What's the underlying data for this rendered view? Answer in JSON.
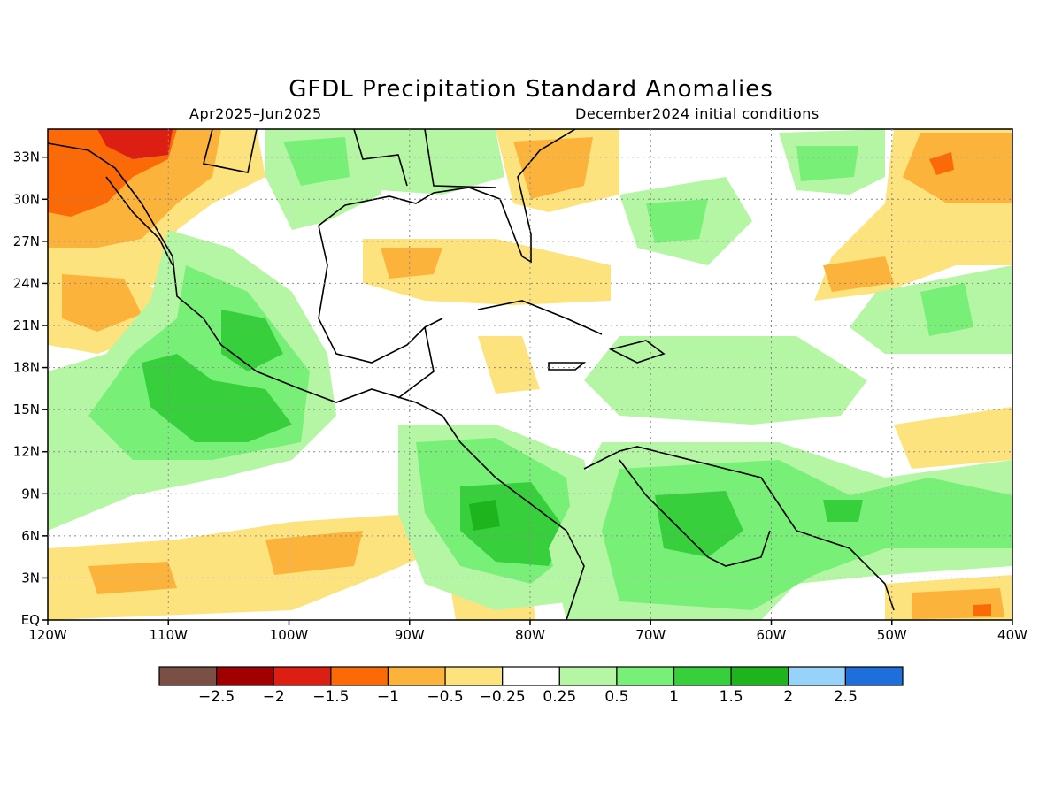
{
  "title": "GFDL Precipitation Standard Anomalies",
  "subtitle_left": "Apr2025–Jun2025",
  "subtitle_right": "December2024 initial conditions",
  "map": {
    "lon_range": [
      -120,
      -40
    ],
    "lat_range": [
      0,
      35
    ],
    "x_ticks": [
      {
        "lon": -120,
        "label": "120W"
      },
      {
        "lon": -110,
        "label": "110W"
      },
      {
        "lon": -100,
        "label": "100W"
      },
      {
        "lon": -90,
        "label": "90W"
      },
      {
        "lon": -80,
        "label": "80W"
      },
      {
        "lon": -70,
        "label": "70W"
      },
      {
        "lon": -60,
        "label": "60W"
      },
      {
        "lon": -50,
        "label": "50W"
      },
      {
        "lon": -40,
        "label": "40W"
      }
    ],
    "y_ticks": [
      {
        "lat": 0,
        "label": "EQ"
      },
      {
        "lat": 3,
        "label": "3N"
      },
      {
        "lat": 6,
        "label": "6N"
      },
      {
        "lat": 9,
        "label": "9N"
      },
      {
        "lat": 12,
        "label": "12N"
      },
      {
        "lat": 15,
        "label": "15N"
      },
      {
        "lat": 18,
        "label": "18N"
      },
      {
        "lat": 21,
        "label": "21N"
      },
      {
        "lat": 24,
        "label": "24N"
      },
      {
        "lat": 27,
        "label": "27N"
      },
      {
        "lat": 30,
        "label": "30N"
      },
      {
        "lat": 33,
        "label": "33N"
      }
    ],
    "grid": "dotted"
  },
  "colorbar": {
    "colors": [
      "#7a5046",
      "#a00000",
      "#dd1e12",
      "#fb6a07",
      "#fcb33c",
      "#fde37e",
      "#ffffff",
      "#b4f6a4",
      "#78f078",
      "#37d03c",
      "#1eb41e",
      "#96d2fa",
      "#1e6edc"
    ],
    "labels": [
      "−2.5",
      "−2",
      "−1.5",
      "−1",
      "−0.5",
      "−0.25",
      "0.25",
      "0.5",
      "1",
      "1.5",
      "2",
      "2.5"
    ]
  }
}
